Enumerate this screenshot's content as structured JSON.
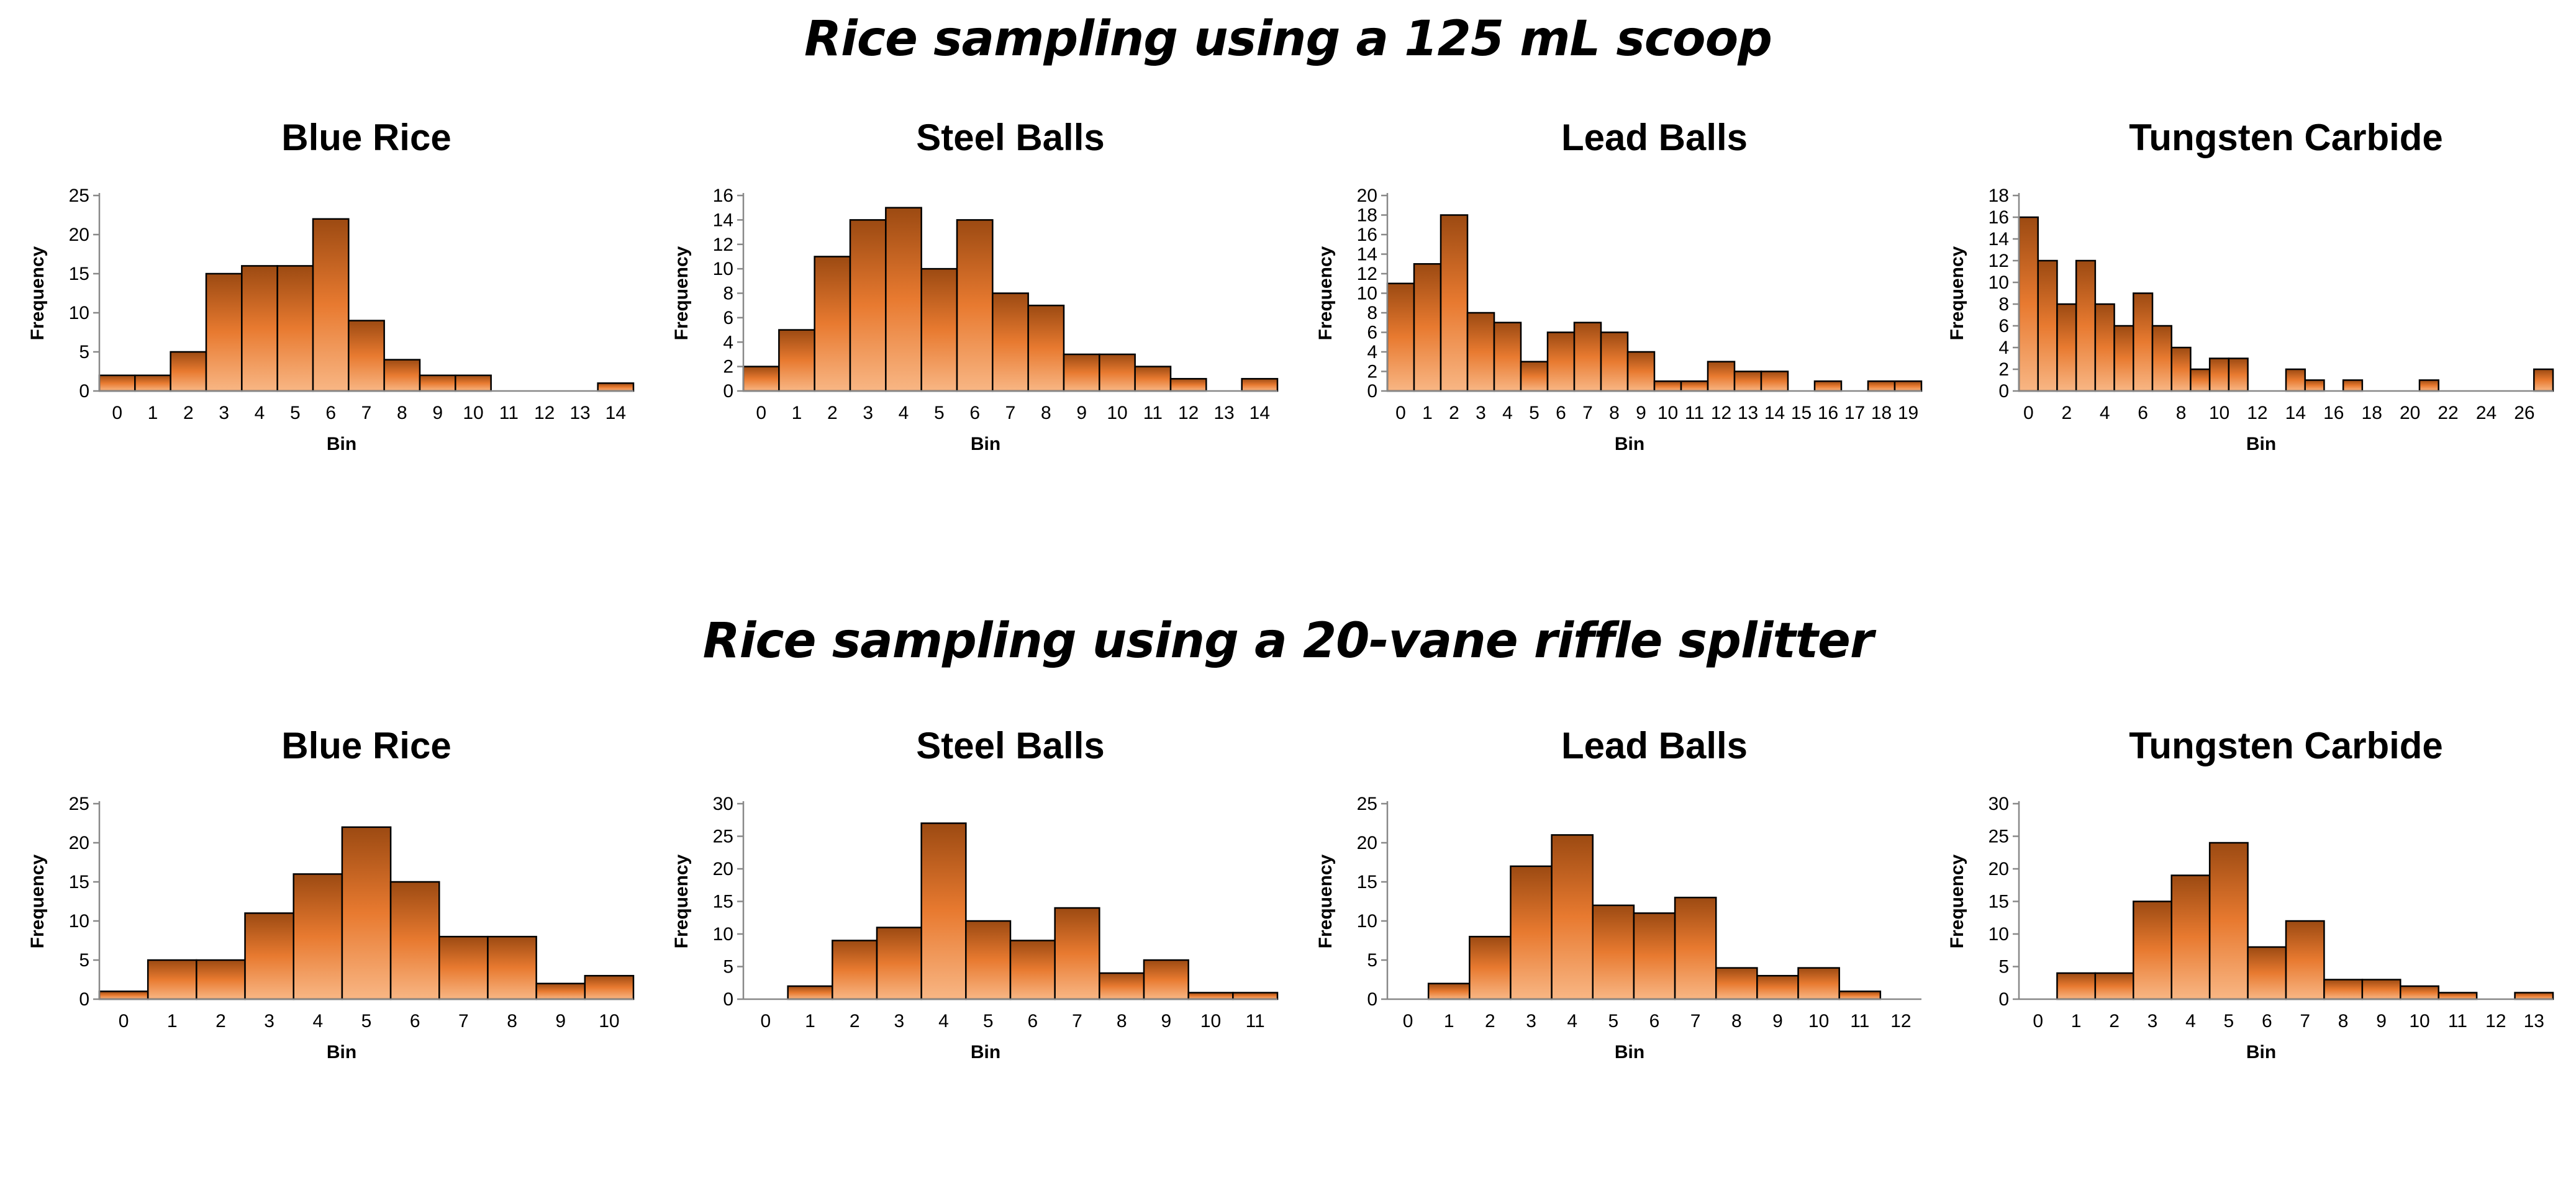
{
  "headings": {
    "scoop": "Rice sampling using a 125 mL scoop",
    "riffle": "Rice sampling using a 20-vane riffle splitter"
  },
  "colors": {
    "bar_top": "#9c4a12",
    "bar_mid": "#e87a30",
    "bar_bottom": "#f8b684",
    "bar_stroke": "#000000"
  },
  "chart_data": [
    {
      "type": "bar",
      "group": "scoop",
      "title": "Blue Rice",
      "xlabel": "Bin",
      "ylabel": "Frequency",
      "ylim": [
        0,
        25
      ],
      "yticks": [
        0,
        5,
        10,
        15,
        20,
        25
      ],
      "categories": [
        "0",
        "1",
        "2",
        "3",
        "4",
        "5",
        "6",
        "7",
        "8",
        "9",
        "10",
        "11",
        "12",
        "13",
        "14"
      ],
      "values": [
        2,
        2,
        5,
        15,
        16,
        16,
        22,
        9,
        4,
        2,
        2,
        0,
        0,
        0,
        1
      ]
    },
    {
      "type": "bar",
      "group": "scoop",
      "title": "Steel Balls",
      "xlabel": "Bin",
      "ylabel": "Frequency",
      "ylim": [
        0,
        16
      ],
      "yticks": [
        0,
        2,
        4,
        6,
        8,
        10,
        12,
        14,
        16
      ],
      "categories": [
        "0",
        "1",
        "2",
        "3",
        "4",
        "5",
        "6",
        "7",
        "8",
        "9",
        "10",
        "11",
        "12",
        "13",
        "14"
      ],
      "values": [
        2,
        5,
        11,
        14,
        15,
        10,
        14,
        8,
        7,
        3,
        3,
        2,
        1,
        0,
        1
      ]
    },
    {
      "type": "bar",
      "group": "scoop",
      "title": "Lead Balls",
      "xlabel": "Bin",
      "ylabel": "Frequency",
      "ylim": [
        0,
        20
      ],
      "yticks": [
        0,
        2,
        4,
        6,
        8,
        10,
        12,
        14,
        16,
        18,
        20
      ],
      "categories": [
        "0",
        "1",
        "2",
        "3",
        "4",
        "5",
        "6",
        "7",
        "8",
        "9",
        "10",
        "11",
        "12",
        "13",
        "14",
        "15",
        "16",
        "17",
        "18",
        "19"
      ],
      "values": [
        11,
        13,
        18,
        8,
        7,
        3,
        6,
        7,
        6,
        4,
        1,
        1,
        3,
        2,
        2,
        0,
        1,
        0,
        1,
        1
      ]
    },
    {
      "type": "bar",
      "group": "scoop",
      "title": "Tungsten Carbide",
      "xlabel": "Bin",
      "ylabel": "Frequency",
      "ylim": [
        0,
        18
      ],
      "yticks": [
        0,
        2,
        4,
        6,
        8,
        10,
        12,
        14,
        16,
        18
      ],
      "categories": [
        "0",
        "1",
        "2",
        "3",
        "4",
        "5",
        "6",
        "7",
        "8",
        "9",
        "10",
        "11",
        "12",
        "13",
        "14",
        "15",
        "16",
        "17",
        "18",
        "19",
        "20",
        "21",
        "22",
        "23",
        "24",
        "25",
        "26",
        "27"
      ],
      "tick_labels": [
        "0",
        "",
        "2",
        "",
        "4",
        "",
        "6",
        "",
        "8",
        "",
        "10",
        "",
        "12",
        "",
        "14",
        "",
        "16",
        "",
        "18",
        "",
        "20",
        "",
        "22",
        "",
        "24",
        "",
        "26",
        ""
      ],
      "values": [
        16,
        12,
        8,
        12,
        8,
        6,
        9,
        6,
        4,
        2,
        3,
        3,
        0,
        0,
        2,
        1,
        0,
        1,
        0,
        0,
        0,
        1,
        0,
        0,
        0,
        0,
        0,
        2
      ]
    },
    {
      "type": "bar",
      "group": "riffle",
      "title": "Blue Rice",
      "xlabel": "Bin",
      "ylabel": "Frequency",
      "ylim": [
        0,
        25
      ],
      "yticks": [
        0,
        5,
        10,
        15,
        20,
        25
      ],
      "categories": [
        "0",
        "1",
        "2",
        "3",
        "4",
        "5",
        "6",
        "7",
        "8",
        "9",
        "10"
      ],
      "values": [
        1,
        5,
        5,
        11,
        16,
        22,
        15,
        8,
        8,
        2,
        3
      ]
    },
    {
      "type": "bar",
      "group": "riffle",
      "title": "Steel Balls",
      "xlabel": "Bin",
      "ylabel": "Frequency",
      "ylim": [
        0,
        30
      ],
      "yticks": [
        0,
        5,
        10,
        15,
        20,
        25,
        30
      ],
      "categories": [
        "0",
        "1",
        "2",
        "3",
        "4",
        "5",
        "6",
        "7",
        "8",
        "9",
        "10",
        "11"
      ],
      "values": [
        0,
        2,
        9,
        11,
        27,
        12,
        9,
        14,
        4,
        6,
        1,
        1
      ]
    },
    {
      "type": "bar",
      "group": "riffle",
      "title": "Lead Balls",
      "xlabel": "Bin",
      "ylabel": "Frequency",
      "ylim": [
        0,
        25
      ],
      "yticks": [
        0,
        5,
        10,
        15,
        20,
        25
      ],
      "categories": [
        "0",
        "1",
        "2",
        "3",
        "4",
        "5",
        "6",
        "7",
        "8",
        "9",
        "10",
        "11",
        "12"
      ],
      "values": [
        0,
        2,
        8,
        17,
        21,
        12,
        11,
        13,
        4,
        3,
        4,
        1,
        0
      ]
    },
    {
      "type": "bar",
      "group": "riffle",
      "title": "Tungsten Carbide",
      "xlabel": "Bin",
      "ylabel": "Frequency",
      "ylim": [
        0,
        30
      ],
      "yticks": [
        0,
        5,
        10,
        15,
        20,
        25,
        30
      ],
      "categories": [
        "0",
        "1",
        "2",
        "3",
        "4",
        "5",
        "6",
        "7",
        "8",
        "9",
        "10",
        "11",
        "12",
        "13"
      ],
      "values": [
        0,
        4,
        4,
        15,
        19,
        24,
        8,
        12,
        3,
        3,
        2,
        1,
        0,
        1
      ]
    }
  ]
}
